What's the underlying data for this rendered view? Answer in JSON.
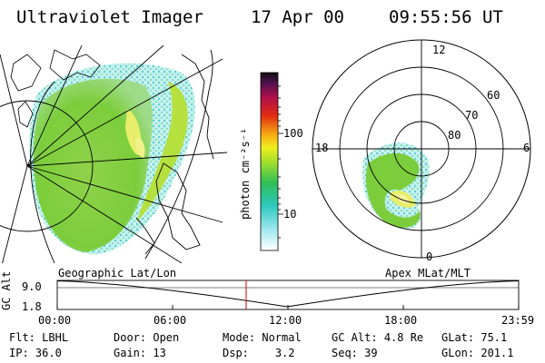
{
  "header": {
    "instrument": "Ultraviolet Imager",
    "date": "17 Apr 00",
    "time": "09:55:56 UT"
  },
  "colorbar": {
    "unit_label": "photon cm⁻²s⁻¹",
    "ticks": [
      "100",
      "10"
    ],
    "scale": "log"
  },
  "polar_plot": {
    "mlt_labels": {
      "top": "12",
      "left": "18",
      "right": "6",
      "bottom": "0"
    },
    "lat_labels": [
      "60",
      "70",
      "80"
    ]
  },
  "timeline": {
    "left_title": "Geographic Lat/Lon",
    "right_title": "Apex MLat/MLT",
    "y_axis_label": "GC Alt",
    "y_ticks": [
      "9.0",
      "1.8"
    ],
    "x_ticks": [
      "00:00",
      "06:00",
      "12:00",
      "18:00",
      "23:59"
    ],
    "current_marker": "09:55:56"
  },
  "status": {
    "row1": [
      {
        "label": "Flt:",
        "value": "LBHL"
      },
      {
        "label": "Door:",
        "value": "Open"
      },
      {
        "label": "Mode:",
        "value": "Normal"
      },
      {
        "label": "GC Alt:",
        "value": "4.8 Re"
      },
      {
        "label": "GLat:",
        "value": "75.1"
      }
    ],
    "row2": [
      {
        "label": "IP:",
        "value": "36.0"
      },
      {
        "label": "Gain:",
        "value": "13"
      },
      {
        "label": "Dsp:",
        "value": "3.2"
      },
      {
        "label": "Seq:",
        "value": "39"
      },
      {
        "label": "GLon:",
        "value": "201.1"
      }
    ]
  },
  "colors": {
    "aurora_low": "#7ccd3c",
    "aurora_mid": "#c8e23a",
    "aurora_high": "#eef06a",
    "speckle": "#5fd0c8",
    "marker": "#d00000"
  }
}
